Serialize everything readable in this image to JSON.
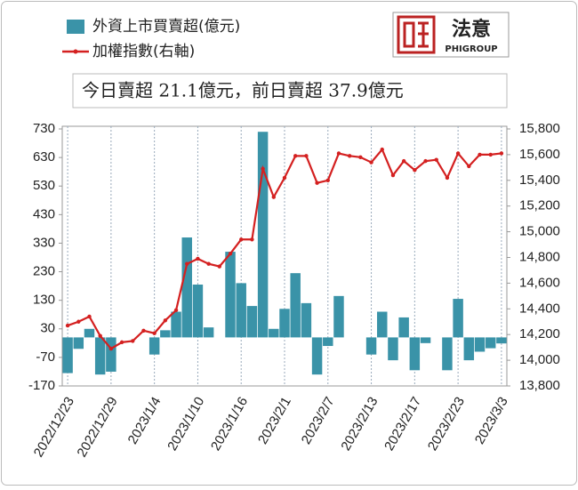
{
  "chart_data": {
    "type": "bar-line",
    "annotation": "今日賣超 21.1億元，前日賣超 37.9億元",
    "categories": [
      "2022/12/23",
      null,
      null,
      null,
      "2022/12/29",
      null,
      null,
      null,
      "2023/1/4",
      null,
      null,
      null,
      "2023/1/10",
      null,
      null,
      null,
      "2023/1/16",
      null,
      null,
      null,
      "2023/2/1",
      null,
      null,
      null,
      "2023/2/7",
      null,
      null,
      null,
      "2023/2/13",
      null,
      null,
      null,
      "2023/2/17",
      null,
      null,
      null,
      "2023/2/23",
      null,
      null,
      null,
      "2023/3/3"
    ],
    "series": [
      {
        "name": "外資上市買賣超(億元)",
        "type": "bar",
        "color": "#3a93a8",
        "axis": "y",
        "values": [
          -125,
          -40,
          30,
          -130,
          -120,
          0,
          0,
          0,
          -60,
          25,
          90,
          350,
          185,
          35,
          0,
          300,
          190,
          110,
          720,
          30,
          100,
          225,
          120,
          -130,
          -30,
          145,
          0,
          0,
          -60,
          90,
          -80,
          70,
          -115,
          -20,
          0,
          -115,
          135,
          -80,
          -50,
          -37.9,
          -21.1
        ]
      },
      {
        "name": "加權指數(右軸)",
        "type": "line",
        "color": "#d42020",
        "axis": "y2",
        "values": [
          14270,
          14300,
          14340,
          14190,
          14090,
          14140,
          14150,
          14230,
          14210,
          14310,
          14390,
          14750,
          14790,
          14750,
          14730,
          14830,
          14940,
          14940,
          15490,
          15270,
          15420,
          15590,
          15590,
          15380,
          15400,
          15610,
          15590,
          15580,
          15540,
          15640,
          15440,
          15550,
          15480,
          15550,
          15560,
          15420,
          15610,
          15510,
          15600,
          15600,
          15610
        ]
      }
    ],
    "ylim": [
      -170,
      730
    ],
    "yticks": [
      -170,
      -70,
      30,
      130,
      230,
      330,
      430,
      530,
      630,
      730
    ],
    "y2lim": [
      13800,
      15800
    ],
    "y2ticks": [
      {
        "value": 13800,
        "label": "13,800"
      },
      {
        "value": 14000,
        "label": "14,000"
      },
      {
        "value": 14200,
        "label": "14,200"
      },
      {
        "value": 14400,
        "label": "14,400"
      },
      {
        "value": 14600,
        "label": "14,600"
      },
      {
        "value": 14800,
        "label": "14,800"
      },
      {
        "value": 15000,
        "label": "15,000"
      },
      {
        "value": 15200,
        "label": "15,200"
      },
      {
        "value": 15400,
        "label": "15,400"
      },
      {
        "value": 15600,
        "label": "15,600"
      },
      {
        "value": 15800,
        "label": "15,800"
      }
    ],
    "x_grid": true
  },
  "logo": {
    "text": "法意",
    "subtext": "PHIGROUP"
  }
}
